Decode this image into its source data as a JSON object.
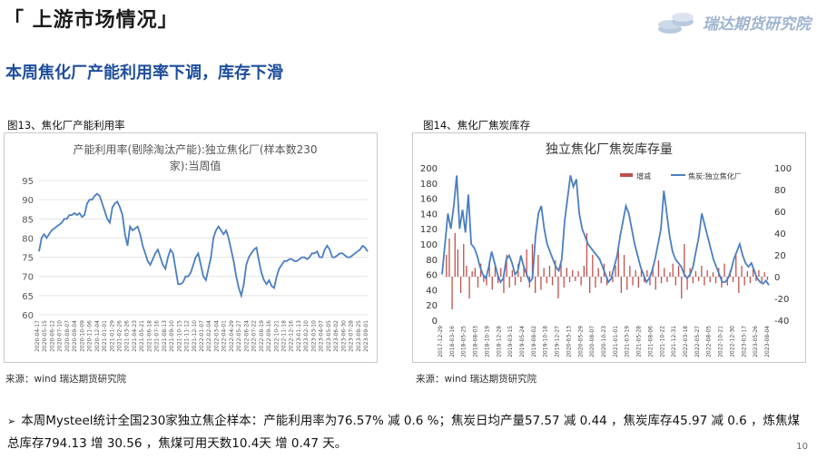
{
  "section_title": "「 上游市场情况」",
  "logo_text": "瑞达期货研究院",
  "headline": "本周焦化厂产能利用率下调，库存下滑",
  "fig1": {
    "label": "图13、焦化厂产能利用率",
    "source": "来源：wind   瑞达期货研究院"
  },
  "fig2": {
    "label": "图14、焦化厂焦炭库存",
    "source": "来源：wind   瑞达期货研究院"
  },
  "bullet": "本周Mysteel统计全国230家独立焦企样本：产能利用率为76.57% 减 0.6 %；焦炭日均产量57.57 减 0.44 ，焦炭库存45.97 减 0.6 ，炼焦煤总库存794.13 增 30.56 ，焦煤可用天数10.4天 增 0.47 天。",
  "page_number": "10",
  "chart_data": [
    {
      "type": "line",
      "title": "产能利用率(剔除淘汰产能):独立焦化厂(样本数230家):当周值",
      "ylim": [
        60,
        95
      ],
      "yticks": [
        "95",
        "90",
        "85",
        "80",
        "75",
        "70",
        "65",
        "60"
      ],
      "xticks": [
        "2020-04-17",
        "2020-05-15",
        "2020-06-12",
        "2020-07-10",
        "2020-08-07",
        "2020-09-04",
        "2020-10-09",
        "2020-11-06",
        "2020-12-04",
        "2021-01-01",
        "2021-01-29",
        "2021-02-26",
        "2021-03-26",
        "2021-04-23",
        "2021-05-21",
        "2021-06-18",
        "2021-07-16",
        "2021-08-13",
        "2021-09-10",
        "2021-10-15",
        "2021-11-12",
        "2021-12-10",
        "2022-01-07",
        "2022-02-04",
        "2022-03-04",
        "2022-04-01",
        "2022-04-29",
        "2022-05-27",
        "2022-06-24",
        "2022-07-22",
        "2022-08-19",
        "2022-09-16",
        "2022-10-21",
        "2022-11-18",
        "2022-12-16",
        "2023-01-13",
        "2023-02-10",
        "2023-03-10",
        "2023-04-07",
        "2023-05-05",
        "2023-06-02",
        "2023-06-30",
        "2023-07-28",
        "2023-08-25",
        "2023-09-01"
      ],
      "series": [
        {
          "color": "#4a7fc1",
          "values": [
            76.5,
            80,
            81,
            80,
            81,
            82,
            82.5,
            83,
            83.5,
            84,
            85,
            85,
            86,
            86,
            86.5,
            86,
            86.5,
            85.5,
            86,
            89,
            90,
            90,
            91,
            91.5,
            91,
            89,
            87,
            85,
            84,
            88,
            89,
            89.5,
            88,
            86,
            81,
            78,
            83,
            82,
            82.5,
            83,
            81,
            78,
            76,
            74,
            73,
            74.5,
            76,
            77,
            75,
            73,
            72,
            75,
            77,
            76,
            72,
            68,
            68,
            68.5,
            70,
            70,
            71,
            73,
            75,
            76,
            73,
            70,
            69,
            72,
            75,
            80,
            82,
            83,
            82,
            81,
            82,
            80,
            77,
            74,
            70,
            67,
            65,
            68,
            73,
            75,
            76,
            77,
            77.5,
            74,
            71,
            69,
            68,
            69,
            67.5,
            67,
            70,
            72,
            73,
            74,
            74,
            74.5,
            74.5,
            74,
            74,
            74.5,
            75,
            75,
            74.5,
            75,
            76,
            76,
            76.5,
            75,
            75,
            77,
            78,
            77,
            75,
            75,
            75.5,
            76,
            76,
            75.5,
            75,
            75,
            75.5,
            76,
            76.5,
            77,
            78,
            77.5,
            76.5
          ]
        }
      ]
    },
    {
      "type": "bar+line",
      "title": "独立焦化厂焦炭库存量",
      "y_left_ticks": [
        "200",
        "180",
        "160",
        "140",
        "120",
        "100",
        "80",
        "60",
        "40",
        "20",
        "0"
      ],
      "y_right_ticks": [
        "100",
        "80",
        "60",
        "40",
        "20",
        "0",
        "-20",
        "-40"
      ],
      "y_left_lim": [
        0,
        200
      ],
      "y_right_lim": [
        -40,
        100
      ],
      "legend": [
        "增减",
        "焦炭:独立焦化厂"
      ],
      "xticks": [
        "2017-12-29",
        "2018-03-16",
        "2018-05-25",
        "2018-08-03",
        "2018-10-19",
        "2018-12-28",
        "2019-03-15",
        "2019-05-24",
        "2019-08-02",
        "2019-10-18",
        "2019-12-27",
        "2020-03-13",
        "2020-05-29",
        "2020-08-07",
        "2020-10-23",
        "2021-01-01",
        "2021-03-19",
        "2021-05-28",
        "2021-08-06",
        "2021-10-22",
        "2021-12-31",
        "2022-03-18",
        "2022-05-27",
        "2022-08-05",
        "2022-10-21",
        "2022-12-30",
        "2023-03-17",
        "2023-05-26",
        "2023-08-04"
      ],
      "series": [
        {
          "name": "增减",
          "axis": "right",
          "color": "#c0504d",
          "values": [
            0,
            20,
            35,
            -30,
            40,
            25,
            -15,
            30,
            10,
            -20,
            5,
            8,
            -10,
            12,
            -5,
            -8,
            15,
            -12,
            10,
            -6,
            8,
            -15,
            20,
            -10,
            6,
            -8,
            12,
            -5,
            10,
            25,
            -10,
            30,
            -15,
            20,
            -12,
            8,
            -6,
            10,
            -8,
            15,
            -20,
            12,
            -10,
            8,
            -5,
            6,
            -4,
            5,
            -8,
            10,
            40,
            -15,
            20,
            -10,
            8,
            -6,
            12,
            -8,
            5,
            -5,
            10,
            25,
            -15,
            20,
            -12,
            10,
            -8,
            6,
            -10,
            8,
            -5,
            6,
            -8,
            10,
            -12,
            15,
            -6,
            8,
            -5,
            4,
            12,
            -8,
            10,
            -20,
            30,
            -12,
            8,
            -6,
            5,
            -4,
            10,
            -8,
            6,
            -5,
            4,
            -6,
            8,
            -10,
            12,
            -8,
            6,
            -5,
            20,
            -15,
            10,
            -8,
            5,
            -6,
            8,
            -4,
            6,
            -5,
            4,
            -3
          ]
        },
        {
          "name": "焦炭:独立焦化厂",
          "axis": "left",
          "color": "#4a7fc1",
          "values": [
            60,
            100,
            140,
            120,
            150,
            190,
            120,
            145,
            115,
            165,
            100,
            95,
            85,
            70,
            60,
            55,
            70,
            90,
            75,
            60,
            50,
            55,
            80,
            85,
            75,
            60,
            65,
            85,
            70,
            60,
            50,
            55,
            110,
            140,
            150,
            120,
            100,
            90,
            80,
            70,
            65,
            80,
            130,
            160,
            190,
            175,
            185,
            140,
            120,
            110,
            100,
            95,
            90,
            85,
            80,
            70,
            60,
            50,
            55,
            70,
            85,
            110,
            130,
            150,
            140,
            120,
            100,
            85,
            70,
            60,
            50,
            55,
            65,
            80,
            100,
            120,
            170,
            140,
            110,
            90,
            80,
            75,
            70,
            60,
            55,
            60,
            70,
            90,
            110,
            140,
            125,
            110,
            95,
            80,
            70,
            60,
            50,
            50,
            55,
            65,
            80,
            90,
            100,
            85,
            75,
            70,
            75,
            65,
            55,
            50,
            48,
            52,
            46
          ]
        }
      ]
    }
  ]
}
